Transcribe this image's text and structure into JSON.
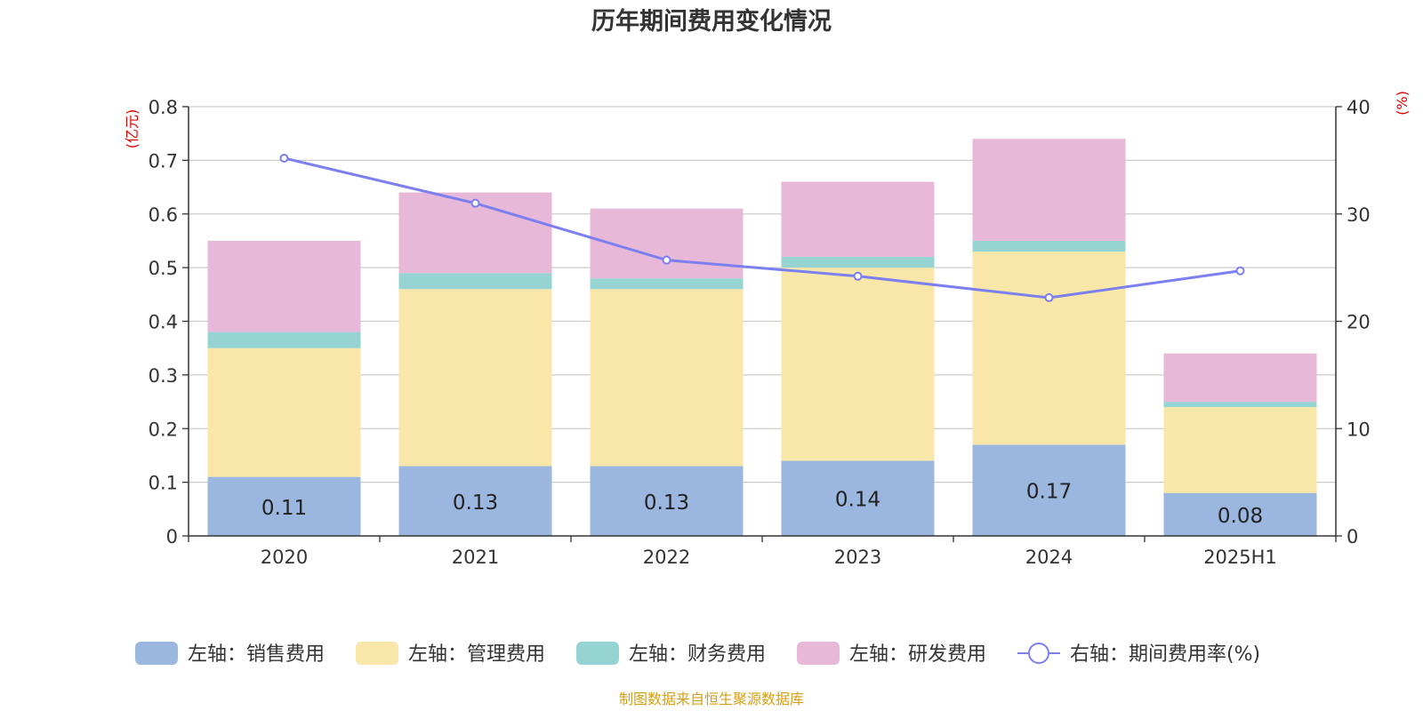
{
  "chart_data": {
    "type": "bar",
    "stacked": true,
    "title": "历年期间费用变化情况",
    "categories": [
      "2020",
      "2021",
      "2022",
      "2023",
      "2024",
      "2025H1"
    ],
    "left_axis": {
      "unit_label": "(亿元)",
      "ylim": [
        0,
        0.8
      ],
      "ticks": [
        "0",
        "0.1",
        "0.2",
        "0.3",
        "0.4",
        "0.5",
        "0.6",
        "0.7",
        "0.8"
      ]
    },
    "right_axis": {
      "unit_label": "(%)",
      "ylim": [
        0,
        40
      ],
      "ticks": [
        "0",
        "10",
        "20",
        "30",
        "40"
      ]
    },
    "series": [
      {
        "name": "左轴：销售费用",
        "axis": "left",
        "color": "#9bb7e0",
        "values": [
          0.11,
          0.13,
          0.13,
          0.14,
          0.17,
          0.08
        ],
        "labels": [
          "0.11",
          "0.13",
          "0.13",
          "0.14",
          "0.17",
          "0.08"
        ]
      },
      {
        "name": "左轴：管理费用",
        "axis": "left",
        "color": "#f8e7a8",
        "values": [
          0.24,
          0.33,
          0.33,
          0.36,
          0.36,
          0.16
        ]
      },
      {
        "name": "左轴：财务费用",
        "axis": "left",
        "color": "#96d4d4",
        "values": [
          0.03,
          0.03,
          0.02,
          0.02,
          0.02,
          0.01
        ]
      },
      {
        "name": "左轴：研发费用",
        "axis": "left",
        "color": "#e8b8d8",
        "values": [
          0.17,
          0.15,
          0.13,
          0.14,
          0.19,
          0.09
        ]
      },
      {
        "name": "右轴：期间费用率(%)",
        "axis": "right",
        "type": "line",
        "color": "#7b7ff0",
        "values": [
          35.2,
          31.0,
          25.7,
          24.2,
          22.2,
          24.7
        ]
      }
    ],
    "grid": true,
    "legend_position": "bottom",
    "source": "制图数据来自恒生聚源数据库",
    "colors": {
      "axis_unit": "#e00000",
      "source_text": "#d4a017",
      "gridline": "#cccccc"
    }
  }
}
